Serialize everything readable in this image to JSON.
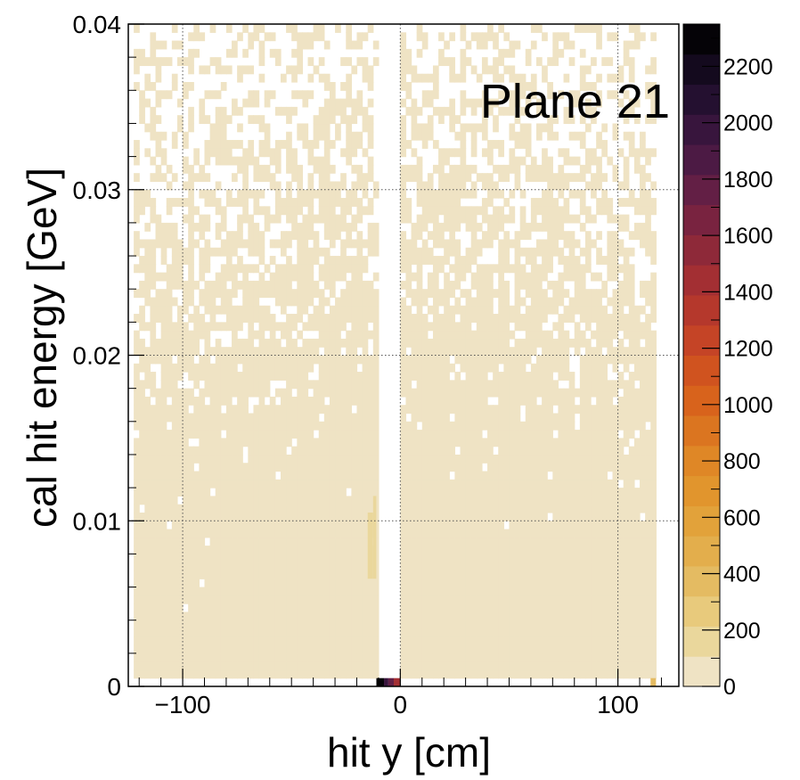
{
  "chart_data": {
    "type": "heatmap",
    "title": "",
    "annotation": "Plane 21",
    "xlabel": "hit y [cm]",
    "ylabel": "cal hit energy [GeV]",
    "xlim": [
      -125,
      128
    ],
    "ylim": [
      0,
      0.04
    ],
    "x_ticks": [
      -100,
      0,
      100
    ],
    "x_tick_labels": [
      "−100",
      "0",
      "100"
    ],
    "y_ticks": [
      0,
      0.01,
      0.02,
      0.03,
      0.04
    ],
    "y_tick_labels": [
      "0",
      "0.01",
      "0.02",
      "0.03",
      "0.04"
    ],
    "grid": true,
    "x_bin_width_cm": 2.5,
    "y_bin_width_gev": 0.0005,
    "empty_x_range": [
      -11,
      0
    ],
    "colorbar": {
      "range": [
        0,
        2350
      ],
      "ticks": [
        0,
        200,
        400,
        600,
        800,
        1000,
        1200,
        1400,
        1600,
        1800,
        2000,
        2200
      ],
      "tick_labels": [
        "0",
        "200",
        "400",
        "600",
        "800",
        "1000",
        "1200",
        "1400",
        "1600",
        "1800",
        "2000",
        "2200"
      ],
      "colors": [
        "#efe3c4",
        "#ead79c",
        "#e8ca7c",
        "#e4bb62",
        "#e3ae4c",
        "#e2a23a",
        "#e1952d",
        "#df8726",
        "#db7520",
        "#d8631c",
        "#d0531f",
        "#c54426",
        "#b5382c",
        "#a32f33",
        "#8e2939",
        "#792340",
        "#631f45",
        "#4c1a44",
        "#38153d",
        "#241030",
        "#140a1e",
        "#050307"
      ]
    },
    "occupancy": {
      "description": "fraction of filled low-count bins vs energy",
      "energy_gev": [
        0.001,
        0.012,
        0.017,
        0.025,
        0.032,
        0.04
      ],
      "fill_fraction_at_edge": [
        1.0,
        0.97,
        0.85,
        0.62,
        0.42,
        0.2
      ],
      "fill_fraction_near_center": [
        1.0,
        1.0,
        0.97,
        0.8,
        0.62,
        0.45
      ]
    },
    "hot_bins": [
      {
        "x_range": [
          -11,
          -7.5
        ],
        "y_range": [
          0,
          0.0005
        ],
        "value": 2300
      },
      {
        "x_range": [
          -7.5,
          -5.5
        ],
        "y_range": [
          0,
          0.0005
        ],
        "value": 2000
      },
      {
        "x_range": [
          -5.5,
          -3
        ],
        "y_range": [
          0,
          0.0005
        ],
        "value": 1800
      },
      {
        "x_range": [
          -3,
          0
        ],
        "y_range": [
          0,
          0.0005
        ],
        "value": 1400
      },
      {
        "x_range": [
          -15,
          -12.5
        ],
        "y_range": [
          0.0065,
          0.0105
        ],
        "value": 150
      },
      {
        "x_range": [
          -12.5,
          -11
        ],
        "y_range": [
          0.0065,
          0.0115
        ],
        "value": 150
      },
      {
        "x_range": [
          115,
          117.5
        ],
        "y_range": [
          0,
          0.0005
        ],
        "value": 400
      }
    ]
  }
}
